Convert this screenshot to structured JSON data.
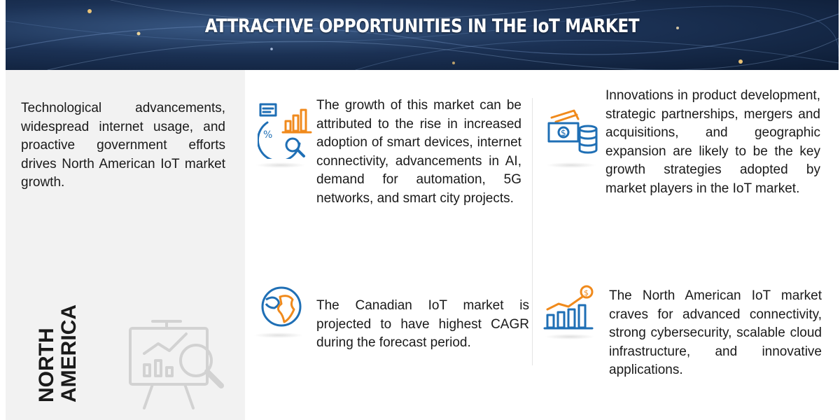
{
  "banner": {
    "title": "ATTRACTIVE OPPORTUNITIES IN THE IoT MARKET"
  },
  "left_panel": {
    "description": "Technological advancements, widespread internet usage, and proactive government efforts drives North American IoT market growth.",
    "region_line1": "NORTH",
    "region_line2": "AMERICA",
    "icon": "presentation-analytics-icon"
  },
  "blocks": [
    {
      "icon": "growth-analytics-icon",
      "text": "The growth of this market can be attributed to the rise in increased adoption of smart devices, internet connectivity, advancements in AI, demand for automation, 5G networks, and smart city projects."
    },
    {
      "icon": "money-coins-icon",
      "text": "Innovations in product development, strategic partnerships, mergers and acquisitions, and geographic expansion are likely to be the key growth strategies adopted by market players in the IoT market."
    },
    {
      "icon": "globe-icon",
      "text": "The Canadian IoT market is projected to have highest CAGR during the forecast period."
    },
    {
      "icon": "rising-bar-chart-icon",
      "text": "The North American IoT market craves for advanced connectivity, strong cybersecurity, scalable cloud infrastructure, and innovative applications."
    }
  ],
  "colors": {
    "banner_dark": "#0c1b33",
    "icon_blue": "#1f6fb5",
    "icon_orange": "#f08a1c",
    "panel_gray": "#f2f2f2"
  }
}
